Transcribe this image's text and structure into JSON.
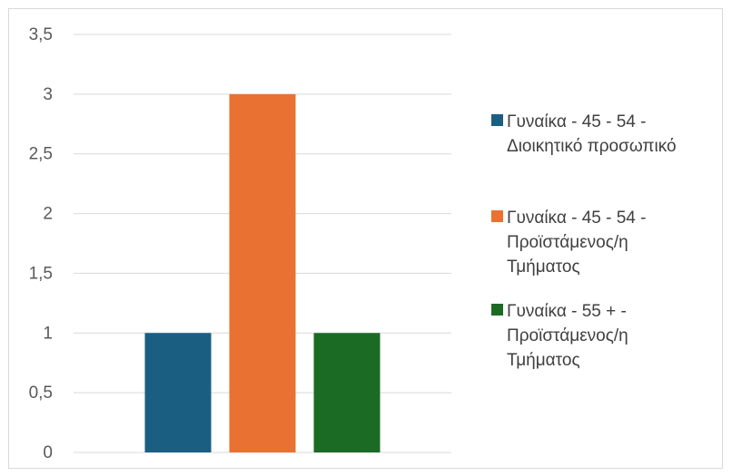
{
  "chart_data": {
    "type": "bar",
    "categories": [
      ""
    ],
    "series": [
      {
        "name": "Γυναίκα - 45 - 54 - Διοικητικό προσωπικό",
        "name_lines": [
          "Γυναίκα - 45 - 54 -",
          "Διοικητικό προσωπικό"
        ],
        "values": [
          1
        ],
        "color": "#1a5e82"
      },
      {
        "name": "Γυναίκα - 45 - 54 - Προϊστάμενος/η Τμήματος",
        "name_lines": [
          "Γυναίκα - 45 - 54 -",
          "Προϊστάμενος/η",
          "Τμήματος"
        ],
        "values": [
          3
        ],
        "color": "#e97132"
      },
      {
        "name": "Γυναίκα - 55 + - Προϊστάμενος/η Τμήματος",
        "name_lines": [
          "Γυναίκα - 55 + -",
          "Προϊστάμενος/η",
          "Τμήματος"
        ],
        "values": [
          1
        ],
        "color": "#1c6b24"
      }
    ],
    "yticks": [
      "0",
      "0,5",
      "1",
      "1,5",
      "2",
      "2,5",
      "3",
      "3,5"
    ],
    "ylim": [
      0,
      3.5
    ],
    "grid": true,
    "legend_position": "right",
    "title": "",
    "xlabel": "",
    "ylabel": ""
  },
  "colors": {
    "gridline": "#d9d9d9",
    "axis_text": "#595959",
    "legend_text": "#404040"
  }
}
